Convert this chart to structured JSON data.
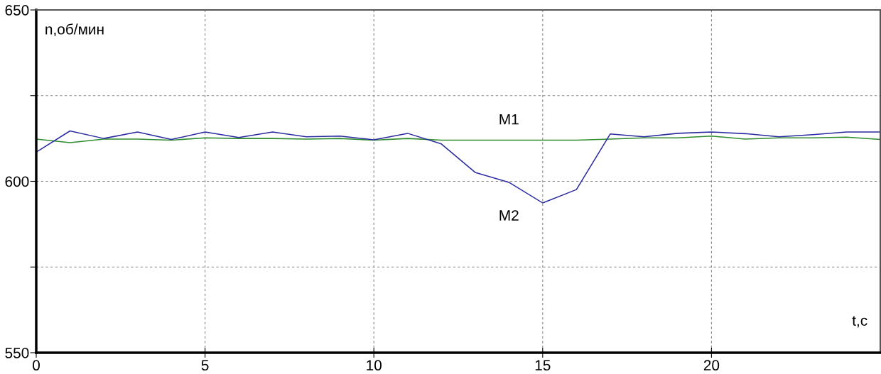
{
  "chart_data": {
    "type": "line",
    "xlabel": "t,с",
    "ylabel": "n,об/мин",
    "x": [
      0,
      1,
      2,
      3,
      4,
      5,
      6,
      7,
      8,
      9,
      10,
      11,
      12,
      13,
      14,
      15,
      16,
      17,
      18,
      19,
      20,
      21,
      22,
      23,
      24,
      25
    ],
    "series": [
      {
        "name": "M1",
        "color": "#2e8b2e",
        "values": [
          612.3,
          611.3,
          612.3,
          612.3,
          612.0,
          612.7,
          612.5,
          612.5,
          612.3,
          612.5,
          612.0,
          612.5,
          612.0,
          612.0,
          612.0,
          612.0,
          612.0,
          612.3,
          612.7,
          612.7,
          613.2,
          612.3,
          612.7,
          612.7,
          612.9,
          612.2
        ]
      },
      {
        "name": "M2",
        "color": "#2b2ba0",
        "values": [
          608.5,
          614.7,
          612.5,
          614.4,
          612.2,
          614.4,
          612.8,
          614.4,
          613.0,
          613.2,
          612.1,
          614.0,
          610.9,
          602.6,
          599.7,
          593.7,
          597.6,
          613.8,
          613.0,
          614.0,
          614.4,
          613.9,
          613.0,
          613.6,
          614.4,
          614.4
        ]
      }
    ],
    "xlim": [
      0,
      25
    ],
    "xticks": [
      0,
      5,
      10,
      15,
      20
    ],
    "ylim": [
      550,
      650
    ],
    "yticks": [
      550,
      {
        "value": 575,
        "label": null
      },
      600,
      {
        "value": 625,
        "label": null
      },
      650
    ],
    "grid": true,
    "marker": "none",
    "line_style": "solid",
    "legend": false
  }
}
